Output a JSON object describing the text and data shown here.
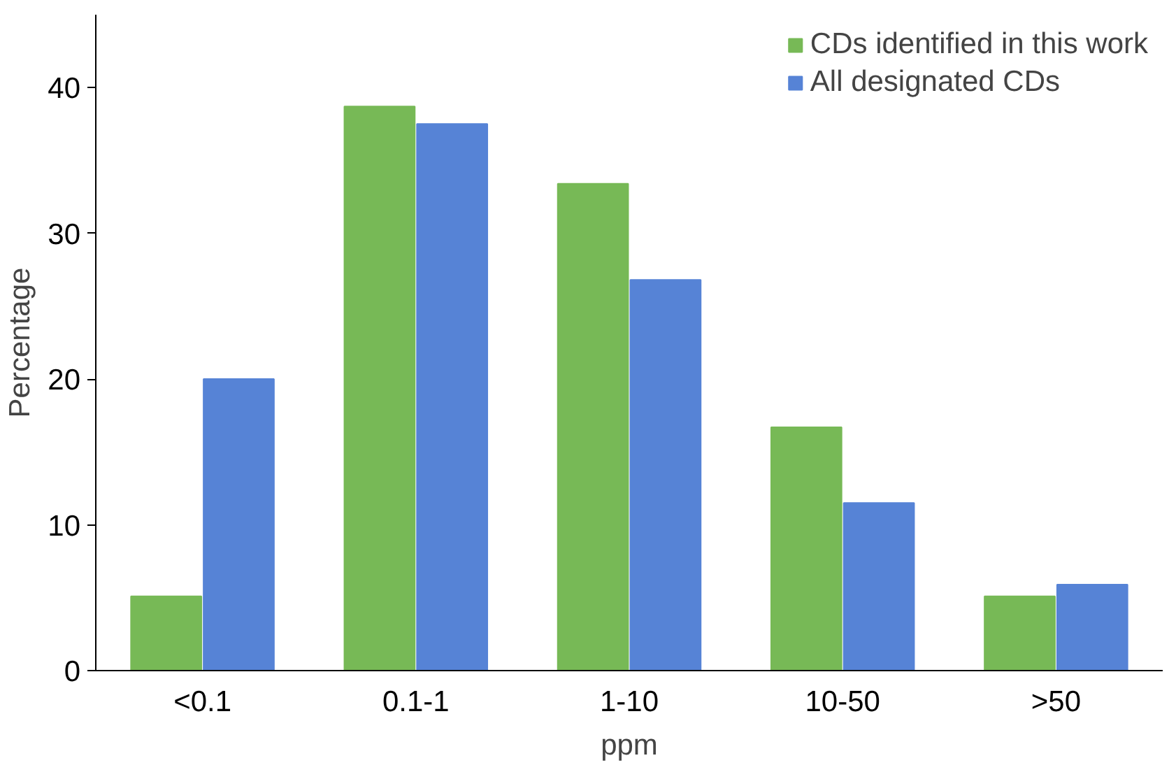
{
  "chart_data": {
    "type": "bar",
    "xlabel": "ppm",
    "ylabel": "Percentage",
    "categories": [
      "<0.1",
      "0.1-1",
      "1-10",
      "10-50",
      ">50"
    ],
    "series": [
      {
        "name": "CDs identified in this work",
        "color": "#77b956",
        "values": [
          5.1,
          38.7,
          33.4,
          16.7,
          5.1
        ]
      },
      {
        "name": "All designated CDs",
        "color": "#5683d6",
        "values": [
          20,
          37.5,
          26.8,
          11.5,
          5.9
        ]
      }
    ],
    "ylim": [
      0,
      45
    ],
    "yticks": [
      0,
      10,
      20,
      30,
      40
    ],
    "grid": false,
    "legend": "top right"
  }
}
